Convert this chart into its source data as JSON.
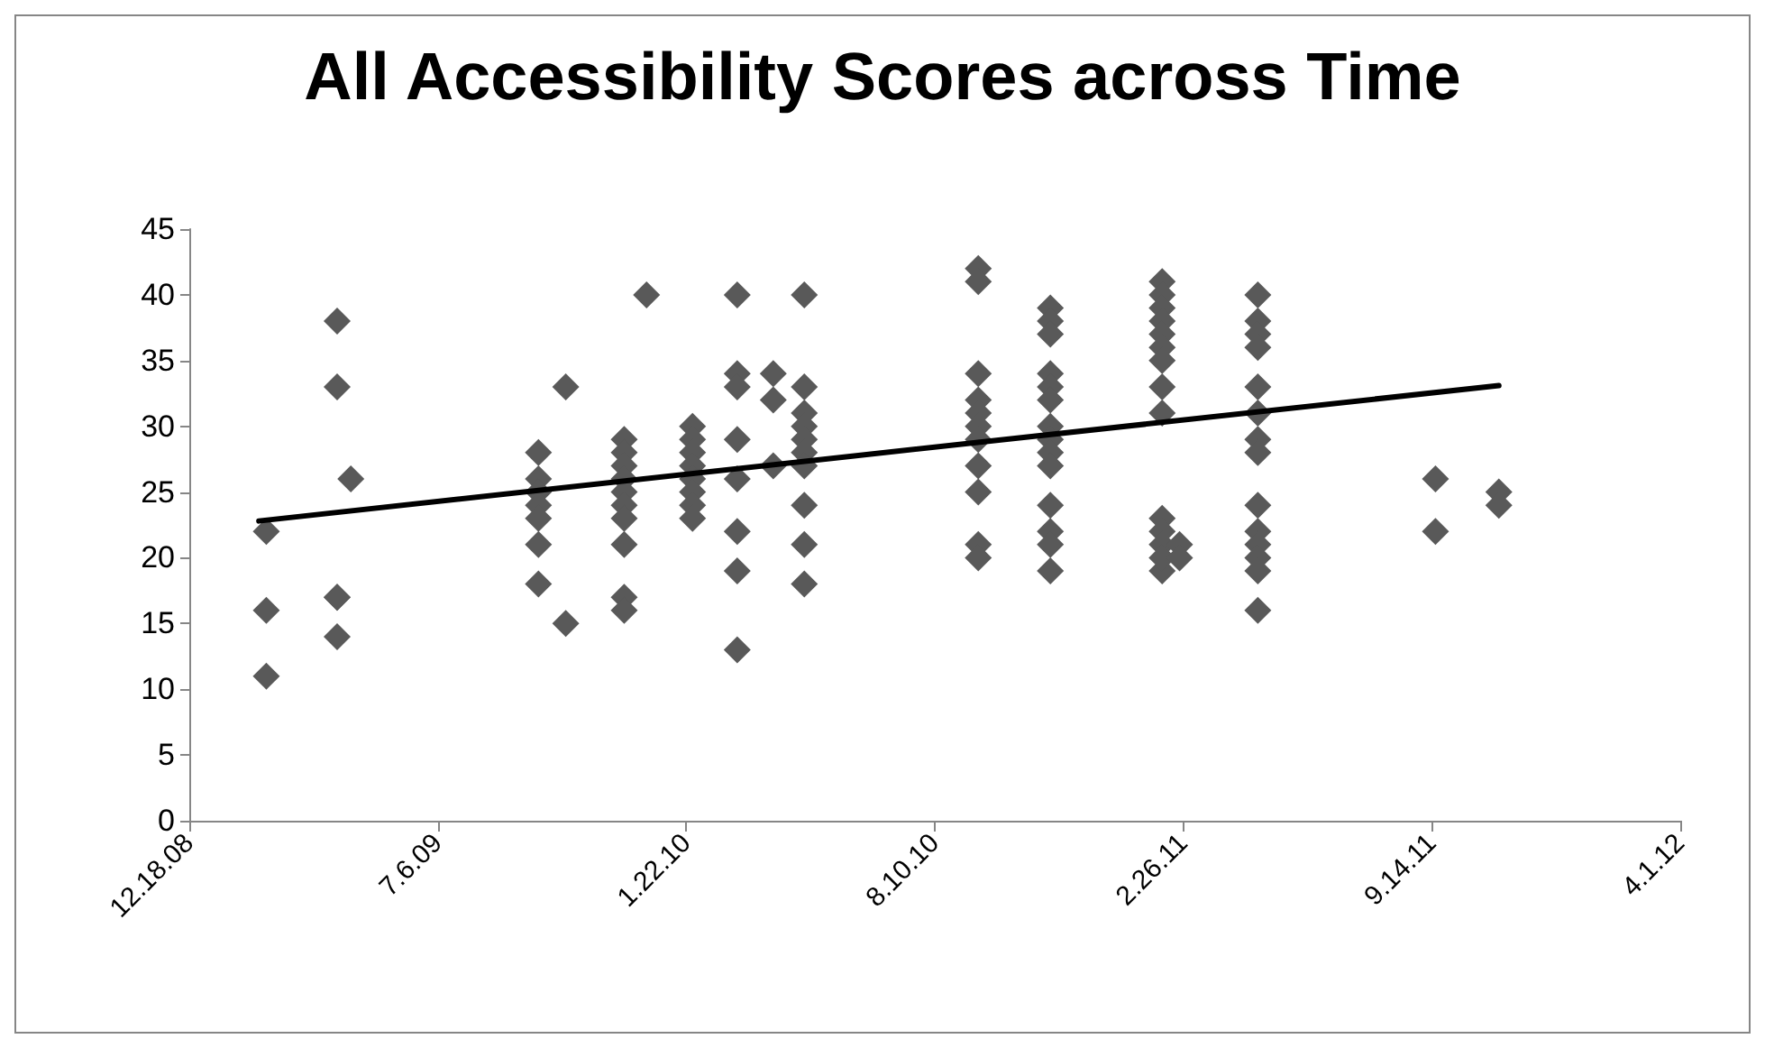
{
  "chart_data": {
    "type": "scatter",
    "title": "All Accessibility Scores across Time",
    "marker": "diamond",
    "grid": false,
    "xlim": [
      "2008-12-18",
      "2012-04-01"
    ],
    "xticks": [
      {
        "value": "2008-12-18",
        "label": "12.18.08"
      },
      {
        "value": "2009-07-06",
        "label": "7.6.09"
      },
      {
        "value": "2010-01-22",
        "label": "1.22.10"
      },
      {
        "value": "2010-08-10",
        "label": "8.10.10"
      },
      {
        "value": "2011-02-26",
        "label": "2.26.11"
      },
      {
        "value": "2011-09-14",
        "label": "9.14.11"
      },
      {
        "value": "2012-04-01",
        "label": "4.1.12"
      }
    ],
    "ylim": [
      0,
      45
    ],
    "yticks": [
      0,
      5,
      10,
      15,
      20,
      25,
      30,
      35,
      40,
      45
    ],
    "series": [
      {
        "type": "scatter",
        "color": "#595959",
        "x": [
          "2009-02-18",
          "2009-02-18",
          "2009-02-18",
          "2009-04-16",
          "2009-04-16",
          "2009-04-16",
          "2009-04-16",
          "2009-04-16",
          "2009-04-27",
          "2009-09-25",
          "2009-09-25",
          "2009-09-25",
          "2009-09-25",
          "2009-09-25",
          "2009-09-25",
          "2009-09-25",
          "2009-10-17",
          "2009-10-17",
          "2009-12-03",
          "2009-12-03",
          "2009-12-03",
          "2009-12-03",
          "2009-12-03",
          "2009-12-03",
          "2009-12-03",
          "2009-12-03",
          "2009-12-03",
          "2009-12-03",
          "2009-12-21",
          "2010-01-27",
          "2010-01-27",
          "2010-01-27",
          "2010-01-27",
          "2010-01-27",
          "2010-01-27",
          "2010-01-27",
          "2010-01-27",
          "2010-03-04",
          "2010-03-04",
          "2010-03-04",
          "2010-03-04",
          "2010-03-04",
          "2010-03-04",
          "2010-03-04",
          "2010-03-04",
          "2010-04-02",
          "2010-04-02",
          "2010-04-02",
          "2010-04-27",
          "2010-04-27",
          "2010-04-27",
          "2010-04-27",
          "2010-04-27",
          "2010-04-27",
          "2010-04-27",
          "2010-04-27",
          "2010-04-27",
          "2010-04-27",
          "2010-09-14",
          "2010-09-14",
          "2010-09-14",
          "2010-09-14",
          "2010-09-14",
          "2010-09-14",
          "2010-09-14",
          "2010-09-14",
          "2010-09-14",
          "2010-09-14",
          "2010-09-14",
          "2010-11-11",
          "2010-11-11",
          "2010-11-11",
          "2010-11-11",
          "2010-11-11",
          "2010-11-11",
          "2010-11-11",
          "2010-11-11",
          "2010-11-11",
          "2010-11-11",
          "2010-11-11",
          "2010-11-11",
          "2010-11-11",
          "2010-11-11",
          "2011-02-09",
          "2011-02-09",
          "2011-02-09",
          "2011-02-09",
          "2011-02-09",
          "2011-02-09",
          "2011-02-09",
          "2011-02-09",
          "2011-02-09",
          "2011-02-09",
          "2011-02-09",
          "2011-02-09",
          "2011-02-09",
          "2011-02-09",
          "2011-02-23",
          "2011-02-23",
          "2011-04-27",
          "2011-04-27",
          "2011-04-27",
          "2011-04-27",
          "2011-04-27",
          "2011-04-27",
          "2011-04-27",
          "2011-04-27",
          "2011-04-27",
          "2011-04-27",
          "2011-04-27",
          "2011-04-27",
          "2011-04-27",
          "2011-04-27",
          "2011-09-17",
          "2011-09-17",
          "2011-11-07",
          "2011-11-07"
        ],
        "values": [
          11,
          16,
          22,
          38,
          33,
          17,
          17,
          14,
          26,
          28,
          26,
          25,
          24,
          23,
          21,
          18,
          33,
          15,
          29,
          28,
          27,
          26,
          25,
          24,
          23,
          21,
          17,
          16,
          40,
          30,
          29,
          28,
          27,
          26,
          25,
          24,
          23,
          40,
          34,
          33,
          29,
          26,
          22,
          19,
          13,
          34,
          32,
          27,
          40,
          33,
          31,
          30,
          29,
          28,
          27,
          24,
          21,
          18,
          42,
          41,
          34,
          32,
          31,
          30,
          29,
          27,
          25,
          21,
          20,
          39,
          38,
          37,
          34,
          33,
          32,
          30,
          29,
          28,
          27,
          24,
          22,
          21,
          19,
          41,
          40,
          39,
          38,
          37,
          36,
          35,
          33,
          31,
          23,
          22,
          21,
          19,
          20,
          21,
          20,
          40,
          38,
          37,
          36,
          33,
          31,
          29,
          28,
          24,
          22,
          21,
          20,
          19,
          16,
          26,
          22,
          25,
          24
        ]
      },
      {
        "type": "line",
        "color": "#000000",
        "line_style": "solid",
        "marker": "none",
        "x": [
          "2009-02-12",
          "2011-11-07"
        ],
        "values": [
          22.8,
          33.1
        ]
      }
    ]
  }
}
